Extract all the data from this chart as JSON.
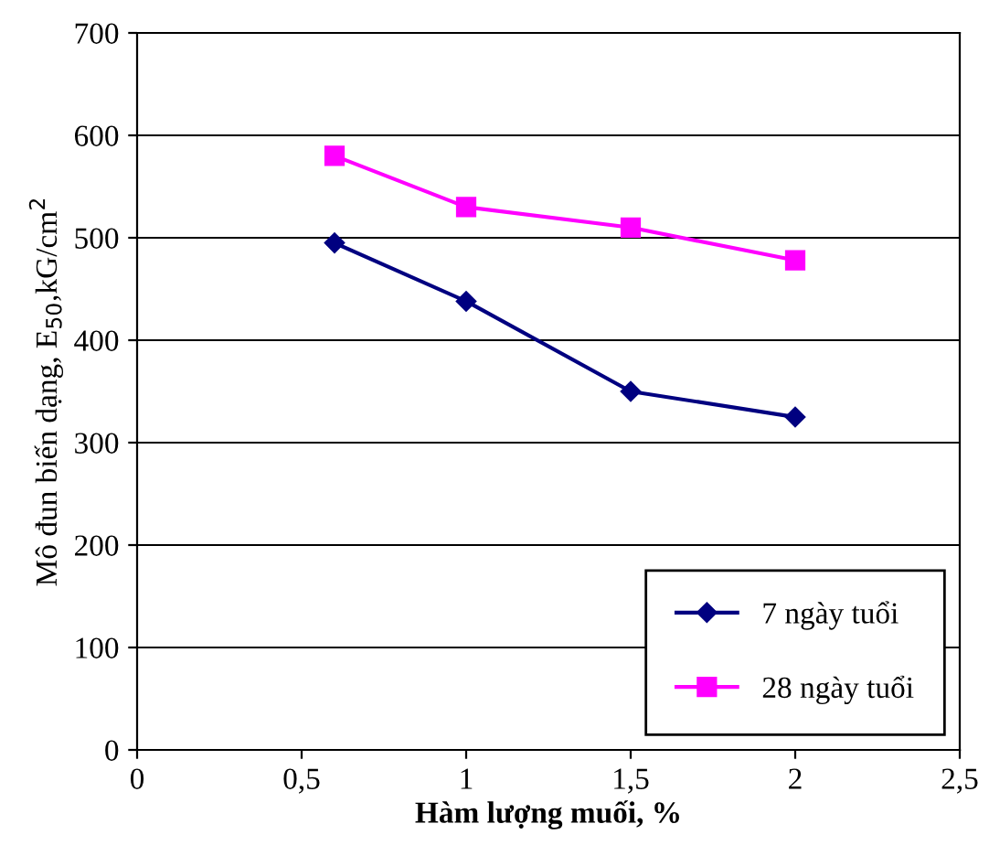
{
  "chart_data": {
    "type": "line",
    "xlabel": "Hàm lượng muối, %",
    "ylabel": "Mô đun biến dạng, E$_{50}$,kG/cm$^{2}$",
    "x": [
      0.6,
      1,
      1.5,
      2
    ],
    "series": [
      {
        "name": "7 ngày tuổi",
        "color": "#000080",
        "values": [
          495,
          438,
          350,
          325
        ],
        "marker": "diamond"
      },
      {
        "name": "28 ngày tuổi",
        "color": "#ff00ff",
        "values": [
          580,
          530,
          510,
          478
        ],
        "marker": "square"
      }
    ],
    "xlim": [
      0,
      2.5
    ],
    "xticks": [
      0,
      {
        "value": 0.5,
        "label": "0,5"
      },
      1,
      {
        "value": 1.5,
        "label": "1,5"
      },
      2,
      {
        "value": 2.5,
        "label": "2,5"
      }
    ],
    "ylim": [
      0,
      700
    ],
    "yticks": [
      0,
      100,
      200,
      300,
      400,
      500,
      600,
      700
    ],
    "grid": "y",
    "legend": "bottom right",
    "line_style": "solid"
  }
}
